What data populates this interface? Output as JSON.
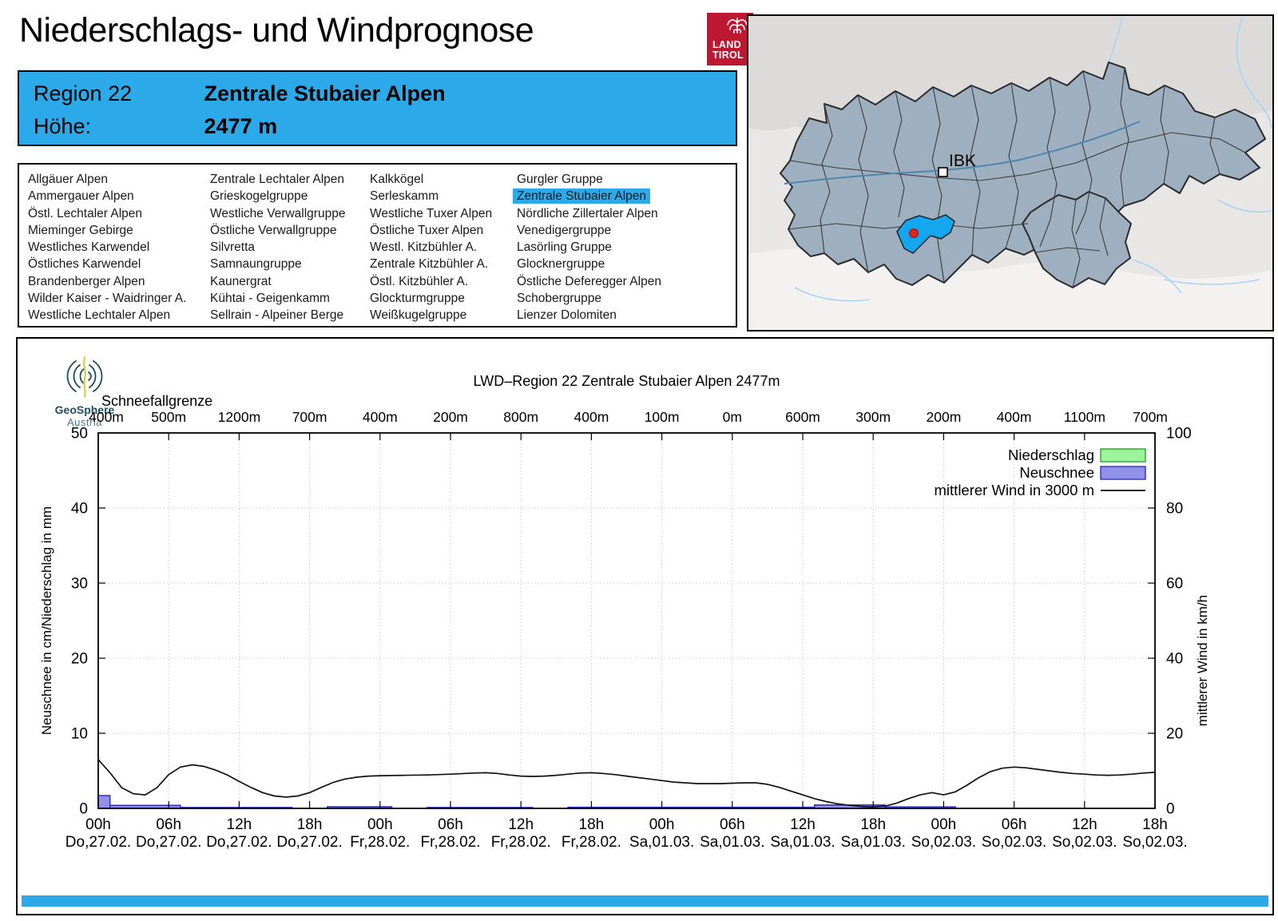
{
  "header": {
    "title": "Niederschlags- und Windprognose",
    "logo": {
      "line1": "LAND",
      "line2": "TIROL",
      "color": "#BE1731"
    }
  },
  "info_box": {
    "rows": [
      {
        "label": "Region 22",
        "value": "Zentrale Stubaier Alpen"
      },
      {
        "label": "Höhe:",
        "value": "2477 m"
      }
    ],
    "color": "#2BA9E8"
  },
  "region_list": {
    "selected": "Zentrale Stubaier Alpen",
    "columns": [
      [
        "Allgäuer Alpen",
        "Ammergauer Alpen",
        "Östl. Lechtaler Alpen",
        "Mieminger Gebirge",
        "Westliches Karwendel",
        "Östliches Karwendel",
        "Brandenberger Alpen",
        "Wilder Kaiser - Waidringer A.",
        "Westliche Lechtaler Alpen"
      ],
      [
        "Zentrale Lechtaler Alpen",
        "Grieskogelgruppe",
        "Westliche Verwallgruppe",
        "Östliche Verwallgruppe",
        "Silvretta",
        "Samnaungruppe",
        "Kaunergrat",
        "Kühtai - Geigenkamm",
        "Sellrain - Alpeiner Berge"
      ],
      [
        "Kalkkögel",
        "Serleskamm",
        "Westliche Tuxer Alpen",
        "Östliche Tuxer Alpen",
        "Westl. Kitzbühler A.",
        "Zentrale Kitzbühler A.",
        "Östl. Kitzbühler A.",
        "Glockturmgruppe",
        "Weißkugelgruppe"
      ],
      [
        "Gurgler Gruppe",
        "Zentrale Stubaier Alpen",
        "Nördliche Zillertaler Alpen",
        "Venedigergruppe",
        "Lasörling Gruppe",
        "Glocknergruppe",
        "Östliche Deferegger Alpen",
        "Schobergruppe",
        "Lienzer Dolomiten"
      ]
    ]
  },
  "map": {
    "city_label": "IBK",
    "selected_region_color": "#14A6EF",
    "region_fill": "#9EAFC0"
  },
  "geosphere_logo": {
    "line1": "GeoSphere",
    "line2": "Austria"
  },
  "chart_data": {
    "type": "combo",
    "title": "LWD–Region 22 Zentrale Stubaier Alpen 2477m",
    "snowline": {
      "label": "Schneefallgrenze",
      "values": [
        "400m",
        "500m",
        "1200m",
        "700m",
        "400m",
        "200m",
        "800m",
        "400m",
        "100m",
        "0m",
        "600m",
        "300m",
        "200m",
        "400m",
        "1100m",
        "700m"
      ]
    },
    "y_left": {
      "label": "Neuschnee in cm/Niederschlag in mm",
      "min": 0,
      "max": 50,
      "ticks": [
        0,
        10,
        20,
        30,
        40,
        50
      ]
    },
    "y_right": {
      "label": "mittlerer Wind in km/h",
      "min": 0,
      "max": 100,
      "ticks": [
        0,
        20,
        40,
        60,
        80,
        100
      ]
    },
    "x": {
      "hours_total": 90,
      "tick_times": [
        "00h",
        "06h",
        "12h",
        "18h",
        "00h",
        "06h",
        "12h",
        "18h",
        "00h",
        "06h",
        "12h",
        "18h",
        "00h",
        "06h",
        "12h",
        "18h"
      ],
      "tick_dates": [
        "Do,27.02.",
        "Do,27.02.",
        "Do,27.02.",
        "Do,27.02.",
        "Fr,28.02.",
        "Fr,28.02.",
        "Fr,28.02.",
        "Fr,28.02.",
        "Sa,01.03.",
        "Sa,01.03.",
        "Sa,01.03.",
        "Sa,01.03.",
        "So,02.03.",
        "So,02.03.",
        "So,02.03.",
        "So,02.03."
      ]
    },
    "legend": [
      {
        "label": "Niederschlag",
        "type": "box",
        "fill": "#9CF59C",
        "border": "#21A821"
      },
      {
        "label": "Neuschnee",
        "type": "box",
        "fill": "#9191EA",
        "border": "#2D2DC2"
      },
      {
        "label": "mittlerer Wind in 3000 m",
        "type": "line",
        "color": "#000000"
      }
    ],
    "niederschlag_bars": [],
    "neuschnee_bars": [
      {
        "from_h": 0,
        "to_h": 1,
        "cm": 1.7
      },
      {
        "from_h": 1,
        "to_h": 7,
        "cm": 0.4
      },
      {
        "from_h": 7,
        "to_h": 16.5,
        "cm": 0.12
      },
      {
        "from_h": 19.5,
        "to_h": 25,
        "cm": 0.22
      },
      {
        "from_h": 28,
        "to_h": 37,
        "cm": 0.12
      },
      {
        "from_h": 40,
        "to_h": 61,
        "cm": 0.15
      },
      {
        "from_h": 61,
        "to_h": 67,
        "cm": 0.45
      },
      {
        "from_h": 67,
        "to_h": 73,
        "cm": 0.2
      }
    ],
    "wind_points_h_kmh": [
      [
        0,
        13
      ],
      [
        1,
        9.5
      ],
      [
        2,
        5.5
      ],
      [
        3,
        3.9
      ],
      [
        4,
        3.6
      ],
      [
        5,
        5.5
      ],
      [
        6,
        9
      ],
      [
        7,
        11
      ],
      [
        8,
        11.6
      ],
      [
        9,
        11.2
      ],
      [
        10,
        10.2
      ],
      [
        11,
        8.9
      ],
      [
        12,
        7.2
      ],
      [
        13,
        5.6
      ],
      [
        14,
        4.2
      ],
      [
        15,
        3.3
      ],
      [
        16,
        3.0
      ],
      [
        17,
        3.3
      ],
      [
        18,
        4.2
      ],
      [
        19,
        5.6
      ],
      [
        20,
        6.9
      ],
      [
        21,
        7.8
      ],
      [
        22,
        8.3
      ],
      [
        23,
        8.6
      ],
      [
        24,
        8.7
      ],
      [
        26,
        8.8
      ],
      [
        28,
        8.9
      ],
      [
        30,
        9.1
      ],
      [
        32,
        9.4
      ],
      [
        33,
        9.5
      ],
      [
        34,
        9.3
      ],
      [
        35,
        8.9
      ],
      [
        36,
        8.6
      ],
      [
        37,
        8.5
      ],
      [
        38,
        8.6
      ],
      [
        39,
        8.8
      ],
      [
        40,
        9.1
      ],
      [
        41,
        9.4
      ],
      [
        42,
        9.5
      ],
      [
        43,
        9.3
      ],
      [
        44,
        9.0
      ],
      [
        45,
        8.6
      ],
      [
        46,
        8.2
      ],
      [
        47,
        7.8
      ],
      [
        48,
        7.4
      ],
      [
        49,
        7.0
      ],
      [
        50,
        6.8
      ],
      [
        51,
        6.6
      ],
      [
        52,
        6.6
      ],
      [
        53,
        6.6
      ],
      [
        54,
        6.7
      ],
      [
        55,
        6.8
      ],
      [
        56,
        6.8
      ],
      [
        57,
        6.4
      ],
      [
        58,
        5.6
      ],
      [
        59,
        4.6
      ],
      [
        60,
        3.6
      ],
      [
        61,
        2.6
      ],
      [
        62,
        1.8
      ],
      [
        63,
        1.2
      ],
      [
        64,
        0.8
      ],
      [
        65,
        0.5
      ],
      [
        66,
        0.4
      ],
      [
        67,
        0.6
      ],
      [
        68,
        1.4
      ],
      [
        69,
        2.6
      ],
      [
        70,
        3.6
      ],
      [
        71,
        4.2
      ],
      [
        72,
        3.6
      ],
      [
        73,
        4.4
      ],
      [
        74,
        6.2
      ],
      [
        75,
        8.2
      ],
      [
        76,
        9.8
      ],
      [
        77,
        10.7
      ],
      [
        78,
        11.0
      ],
      [
        79,
        10.8
      ],
      [
        80,
        10.4
      ],
      [
        81,
        10.0
      ],
      [
        82,
        9.6
      ],
      [
        83,
        9.3
      ],
      [
        84,
        9.1
      ],
      [
        85,
        8.9
      ],
      [
        86,
        8.8
      ],
      [
        87,
        8.9
      ],
      [
        88,
        9.1
      ],
      [
        89,
        9.4
      ],
      [
        90,
        9.6
      ]
    ]
  }
}
